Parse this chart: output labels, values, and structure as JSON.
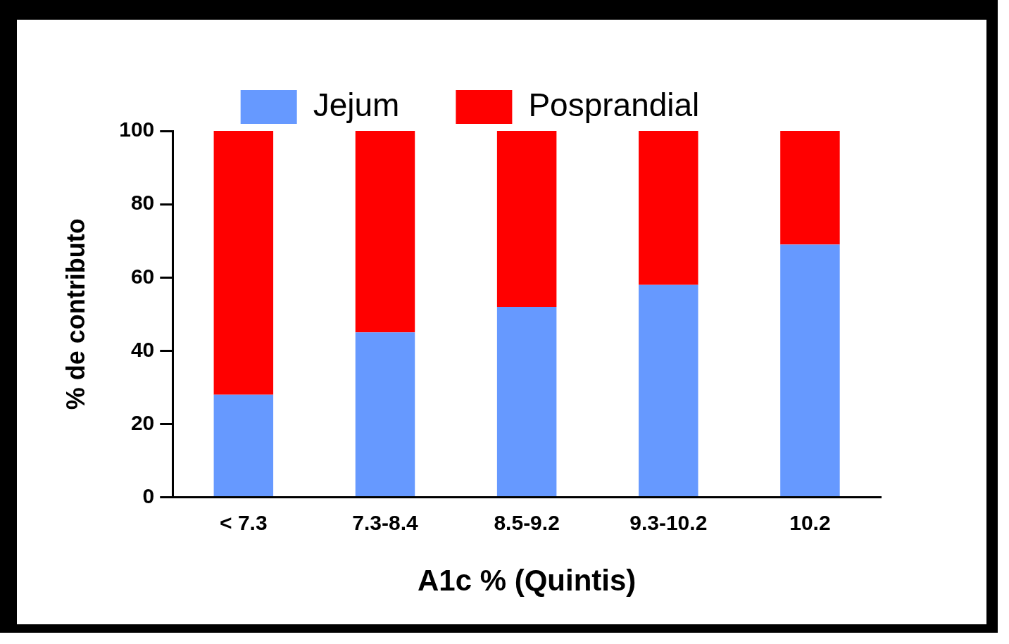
{
  "chart_data": {
    "type": "bar",
    "stacked": true,
    "xlabel": "A1c % (Quintis)",
    "ylabel": "% de contributo",
    "categories": [
      "< 7.3",
      "7.3-8.4",
      "8.5-9.2",
      "9.3-10.2",
      "10.2"
    ],
    "series": [
      {
        "name": "Jejum",
        "color": "#6699ff",
        "values": [
          28,
          45,
          52,
          58,
          69
        ]
      },
      {
        "name": "Posprandial",
        "color": "#ff0000",
        "values": [
          72,
          55,
          48,
          42,
          31
        ]
      }
    ],
    "ylim": [
      0,
      100
    ],
    "yticks": [
      0,
      20,
      40,
      60,
      80,
      100
    ],
    "grid": false,
    "legend": "top"
  }
}
